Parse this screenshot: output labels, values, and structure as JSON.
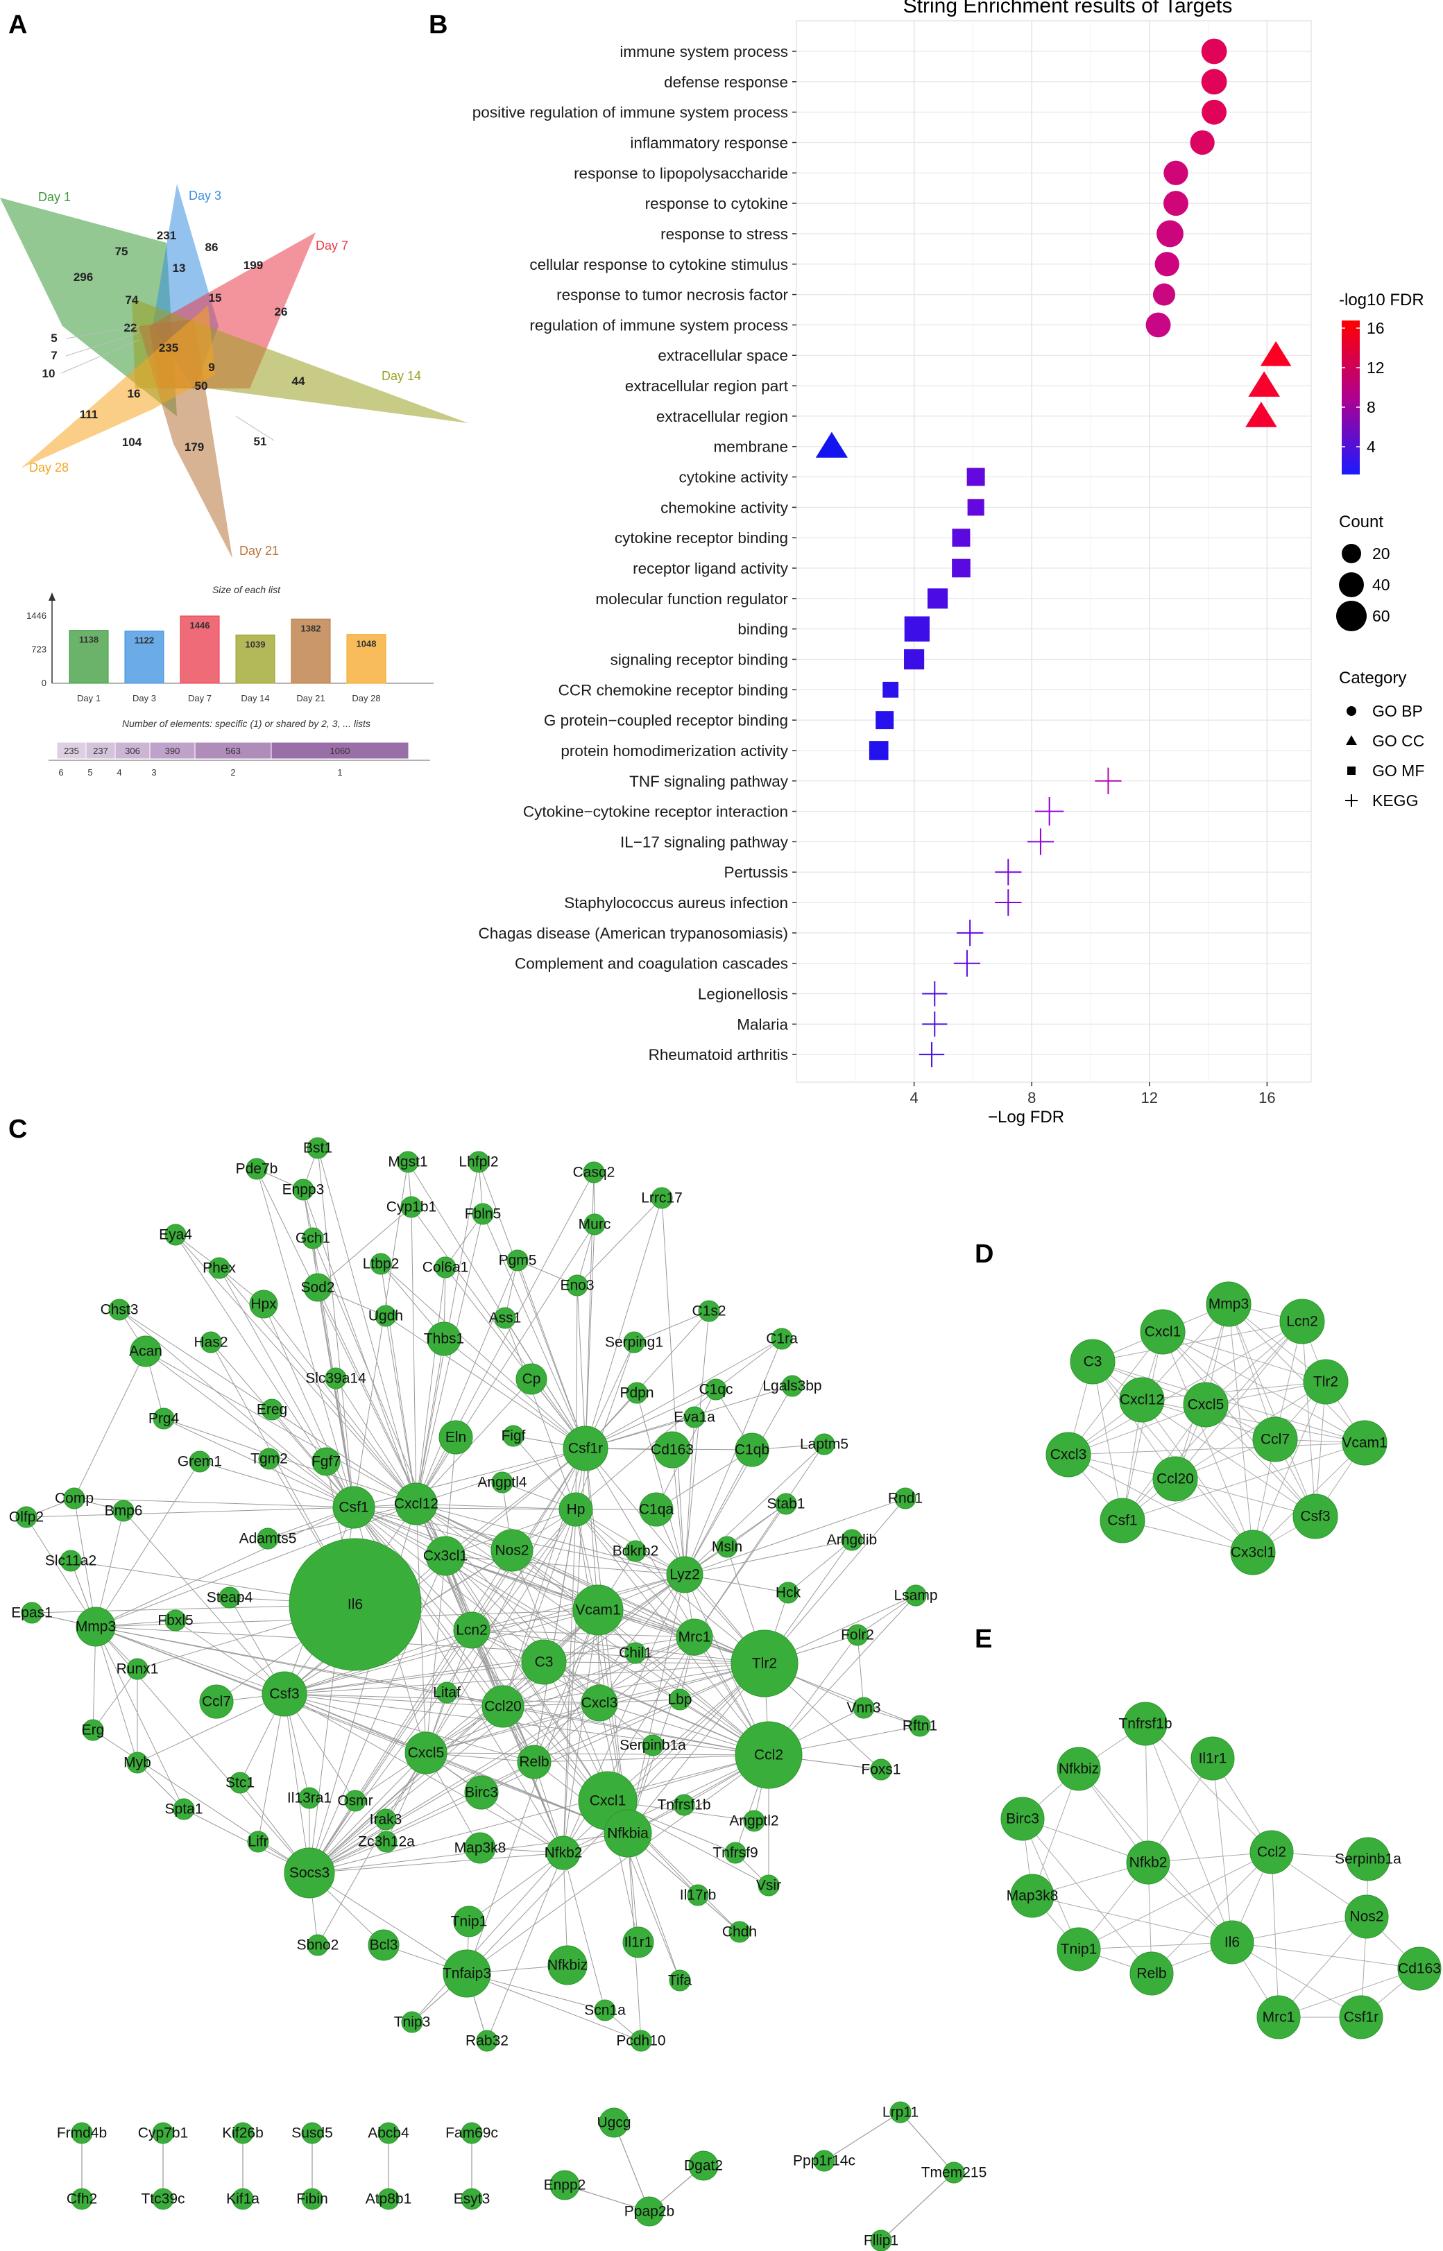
{
  "panel_labels": {
    "a": "A",
    "b": "B",
    "c": "C",
    "d": "D",
    "e": "E"
  },
  "venn": {
    "sets": [
      {
        "name": "Day 1",
        "color": "#3a9a3a"
      },
      {
        "name": "Day 3",
        "color": "#3a8fe0"
      },
      {
        "name": "Day 7",
        "color": "#ea3a4a"
      },
      {
        "name": "Day 14",
        "color": "#9aa020"
      },
      {
        "name": "Day 21",
        "color": "#b8743a"
      },
      {
        "name": "Day 28",
        "color": "#f5a623"
      }
    ],
    "numbers": [
      "75",
      "231",
      "86",
      "199",
      "296",
      "13",
      "74",
      "15",
      "26",
      "22",
      "5",
      "7",
      "10",
      "235",
      "9",
      "50",
      "44",
      "16",
      "111",
      "104",
      "179",
      "51"
    ],
    "bar_title": "Size of each list",
    "bar_axis": [
      "1446",
      "723",
      "0"
    ],
    "bars": [
      {
        "label": "Day 1",
        "value": 1138
      },
      {
        "label": "Day 3",
        "value": 1122
      },
      {
        "label": "Day 7",
        "value": 1446
      },
      {
        "label": "Day 14",
        "value": 1039
      },
      {
        "label": "Day 21",
        "value": 1382
      },
      {
        "label": "Day 28",
        "value": 1048
      }
    ],
    "shared_title": "Number of elements: specific (1) or shared by 2, 3, ... lists",
    "shared": [
      {
        "k": "6",
        "value": "235"
      },
      {
        "k": "5",
        "value": "237"
      },
      {
        "k": "4",
        "value": "306"
      },
      {
        "k": "3",
        "value": "390"
      },
      {
        "k": "2",
        "value": "563"
      },
      {
        "k": "1",
        "value": "1060"
      }
    ]
  },
  "chart_data": {
    "type": "scatter",
    "title": "String Enrichment results of Targets",
    "xlabel": "−Log FDR",
    "xticks": [
      "4",
      "8",
      "12",
      "16"
    ],
    "xlim": [
      0,
      17.5
    ],
    "terms": [
      {
        "term": "immune system process",
        "x": 14.2,
        "count": 38,
        "category": "GO BP",
        "fdr": 14.2
      },
      {
        "term": "defense response",
        "x": 14.2,
        "count": 38,
        "category": "GO BP",
        "fdr": 14.2
      },
      {
        "term": "positive regulation of immune system process",
        "x": 14.2,
        "count": 35,
        "category": "GO BP",
        "fdr": 14.2
      },
      {
        "term": "inflammatory response",
        "x": 13.8,
        "count": 33,
        "category": "GO BP",
        "fdr": 13.8
      },
      {
        "term": "response to lipopolysaccharide",
        "x": 12.9,
        "count": 33,
        "category": "GO BP",
        "fdr": 12.9
      },
      {
        "term": "response to cytokine",
        "x": 12.9,
        "count": 35,
        "category": "GO BP",
        "fdr": 12.9
      },
      {
        "term": "response to stress",
        "x": 12.7,
        "count": 45,
        "category": "GO BP",
        "fdr": 12.7
      },
      {
        "term": "cellular response to cytokine stimulus",
        "x": 12.6,
        "count": 33,
        "category": "GO BP",
        "fdr": 12.6
      },
      {
        "term": "response to tumor necrosis factor",
        "x": 12.5,
        "count": 24,
        "category": "GO BP",
        "fdr": 12.5
      },
      {
        "term": "regulation of immune system process",
        "x": 12.3,
        "count": 35,
        "category": "GO BP",
        "fdr": 12.3
      },
      {
        "term": "extracellular space",
        "x": 16.3,
        "count": 45,
        "category": "GO CC",
        "fdr": 16.3
      },
      {
        "term": "extracellular region part",
        "x": 15.9,
        "count": 48,
        "category": "GO CC",
        "fdr": 15.9
      },
      {
        "term": "extracellular region",
        "x": 15.8,
        "count": 48,
        "category": "GO CC",
        "fdr": 15.8
      },
      {
        "term": "membrane",
        "x": 1.2,
        "count": 50,
        "category": "GO CC",
        "fdr": 1.2
      },
      {
        "term": "cytokine activity",
        "x": 6.1,
        "count": 20,
        "category": "GO MF",
        "fdr": 6.1
      },
      {
        "term": "chemokine activity",
        "x": 6.1,
        "count": 15,
        "category": "GO MF",
        "fdr": 6.1
      },
      {
        "term": "cytokine receptor binding",
        "x": 5.6,
        "count": 20,
        "category": "GO MF",
        "fdr": 5.6
      },
      {
        "term": "receptor ligand activity",
        "x": 5.6,
        "count": 22,
        "category": "GO MF",
        "fdr": 5.6
      },
      {
        "term": "molecular function regulator",
        "x": 4.8,
        "count": 30,
        "category": "GO MF",
        "fdr": 4.8
      },
      {
        "term": "binding",
        "x": 4.1,
        "count": 60,
        "category": "GO MF",
        "fdr": 4.1
      },
      {
        "term": "signaling receptor binding",
        "x": 4.0,
        "count": 30,
        "category": "GO MF",
        "fdr": 4.0
      },
      {
        "term": "CCR chemokine receptor binding",
        "x": 3.2,
        "count": 12,
        "category": "GO MF",
        "fdr": 3.2
      },
      {
        "term": "G protein−coupled receptor binding",
        "x": 3.0,
        "count": 20,
        "category": "GO MF",
        "fdr": 3.0
      },
      {
        "term": "protein homodimerization activity",
        "x": 2.8,
        "count": 25,
        "category": "GO MF",
        "fdr": 2.8
      },
      {
        "term": "TNF signaling pathway",
        "x": 10.6,
        "count": 15,
        "category": "KEGG",
        "fdr": 10.6
      },
      {
        "term": "Cytokine−cytokine receptor interaction",
        "x": 8.6,
        "count": 20,
        "category": "KEGG",
        "fdr": 8.6
      },
      {
        "term": "IL−17 signaling pathway",
        "x": 8.3,
        "count": 15,
        "category": "KEGG",
        "fdr": 8.3
      },
      {
        "term": "Pertussis",
        "x": 7.2,
        "count": 15,
        "category": "KEGG",
        "fdr": 7.2
      },
      {
        "term": "Staphylococcus aureus infection",
        "x": 7.2,
        "count": 15,
        "category": "KEGG",
        "fdr": 7.2
      },
      {
        "term": "Chagas disease (American trypanosomiasis)",
        "x": 5.9,
        "count": 15,
        "category": "KEGG",
        "fdr": 5.9
      },
      {
        "term": "Complement and coagulation cascades",
        "x": 5.8,
        "count": 15,
        "category": "KEGG",
        "fdr": 5.8
      },
      {
        "term": "Legionellosis",
        "x": 4.7,
        "count": 12,
        "category": "KEGG",
        "fdr": 4.7
      },
      {
        "term": "Malaria",
        "x": 4.7,
        "count": 12,
        "category": "KEGG",
        "fdr": 4.7
      },
      {
        "term": "Rheumatoid arthritis",
        "x": 4.6,
        "count": 12,
        "category": "KEGG",
        "fdr": 4.6
      }
    ],
    "legend": {
      "color_title": "-log10 FDR",
      "color_ticks": [
        "16",
        "12",
        "8",
        "4"
      ],
      "size_title": "Count",
      "size_items": [
        "20",
        "40",
        "60"
      ],
      "category_title": "Category",
      "category_items": [
        "GO BP",
        "GO CC",
        "GO MF",
        "KEGG"
      ]
    }
  },
  "networks": {
    "main_nodes": [
      "Bst1",
      "Pde7b",
      "Enpp3",
      "Mgst1",
      "Lhfpl2",
      "Casq2",
      "Cyp1b1",
      "Lrrc17",
      "Fbln5",
      "Murc",
      "Eya4",
      "Gch1",
      "Phex",
      "Ltbp2",
      "Col6a1",
      "Pgm5",
      "Eno3",
      "Sod2",
      "Hpx",
      "Ugdh",
      "Ass1",
      "Chst3",
      "Thbs1",
      "Has2",
      "Serping1",
      "C1s2",
      "C1ra",
      "Acan",
      "Slc39a14",
      "Cp",
      "Lgals3bp",
      "Pdpn",
      "Ereg",
      "Prg4",
      "C1qc",
      "Eva1a",
      "Grem1",
      "Tgm2",
      "Figf",
      "Fgf7",
      "Eln",
      "Csf1r",
      "Cd163",
      "C1qb",
      "Laptm5",
      "Angptl4",
      "Olfp2",
      "Comp",
      "Bmp6",
      "Csf1",
      "Cxcl12",
      "Hp",
      "C1qa",
      "Stab1",
      "Rnd1",
      "Adamts5",
      "Nos2",
      "Bdkrb2",
      "Msln",
      "Arhgdib",
      "Slc11a2",
      "Cx3cl1",
      "Lyz2",
      "Steap4",
      "Il6",
      "Hck",
      "Lsamp",
      "Epas1",
      "Mmp3",
      "Fbxl5",
      "Vcam1",
      "Lcn2",
      "Chil1",
      "Mrc1",
      "Folr2",
      "C3",
      "Tlr2",
      "Runx1",
      "Litaf",
      "Ccl7",
      "Ccl20",
      "Cxcl3",
      "Lbp",
      "Erg",
      "Csf3",
      "Vnn3",
      "Rftn1",
      "Myb",
      "Serpinb1a",
      "Cxcl5",
      "Relb",
      "Ccl2",
      "Stc1",
      "Osmr",
      "Birc3",
      "Cxcl1",
      "Tnfrsf1b",
      "Foxs1",
      "Spta1",
      "Il13ra1",
      "Angptl2",
      "Irak3",
      "Tnfrsf9",
      "Lifr",
      "Map3k8",
      "Nfkb2",
      "Nfkbia",
      "Zc3h12a",
      "Socs3",
      "Vsir",
      "Il17rb",
      "Chdh",
      "Tnip1",
      "Sbno2",
      "Bcl3",
      "Il1r1",
      "Tnfaip3",
      "Nfkbiz",
      "Tifa",
      "Scn1a",
      "Tnip3",
      "Rab32",
      "Pcdh10"
    ],
    "pairs": [
      [
        "Frmd4b",
        "Cfh2"
      ],
      [
        "Cyp7b1",
        "Ttc39c"
      ],
      [
        "Kif26b",
        "Kif1a"
      ],
      [
        "Susd5",
        "Fibin"
      ],
      [
        "Abcb4",
        "Atp8b1"
      ],
      [
        "Fam69c",
        "Esyt3"
      ]
    ],
    "small_cluster_1": [
      "Ugcg",
      "Dgat2",
      "Enpp2",
      "Ppap2b"
    ],
    "small_cluster_2": [
      "Lrp11",
      "Ppp1r14c",
      "Tmem215",
      "Fllip1"
    ],
    "panel_d": [
      "Mmp3",
      "Cxcl1",
      "Lcn2",
      "C3",
      "Tlr2",
      "Cxcl12",
      "Cxcl5",
      "Cxcl3",
      "Ccl7",
      "Vcam1",
      "Ccl20",
      "Csf1",
      "Csf3",
      "Cx3cl1"
    ],
    "panel_e": [
      "Tnfrsf1b",
      "Il1r1",
      "Nfkbiz",
      "Birc3",
      "Nfkb2",
      "Ccl2",
      "Serpinb1a",
      "Map3k8",
      "Nos2",
      "Il6",
      "Tnip1",
      "Relb",
      "Cd163",
      "Mrc1",
      "Csf1r"
    ]
  }
}
